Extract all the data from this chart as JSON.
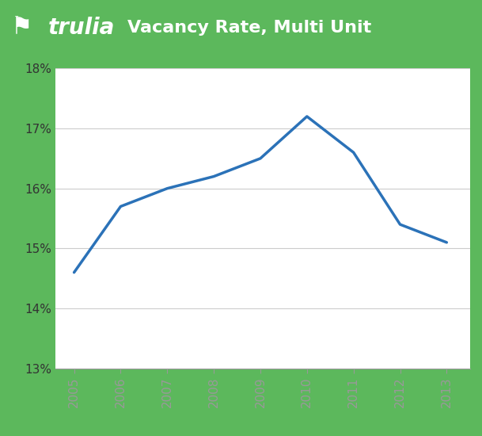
{
  "years": [
    2005,
    2006,
    2007,
    2008,
    2009,
    2010,
    2011,
    2012,
    2013
  ],
  "values": [
    14.6,
    15.7,
    16.0,
    16.2,
    16.5,
    17.2,
    16.6,
    15.4,
    15.1
  ],
  "line_color": "#2B72B8",
  "line_width": 2.5,
  "header_bg_color": "#5CB85C",
  "outer_bg_color": "#5CB85C",
  "chart_bg_color": "#FFFFFF",
  "title": "Vacancy Rate, Multi Unit",
  "ylim": [
    13,
    18
  ],
  "ytick_labels": [
    "13%",
    "14%",
    "15%",
    "16%",
    "17%",
    "18%"
  ],
  "ytick_values": [
    13,
    14,
    15,
    16,
    17,
    18
  ],
  "axis_label_color": "#333333",
  "tick_color": "#999999",
  "grid_color": "#CCCCCC",
  "header_fontsize": 16,
  "trulia_fontsize": 20,
  "tick_fontsize": 11
}
